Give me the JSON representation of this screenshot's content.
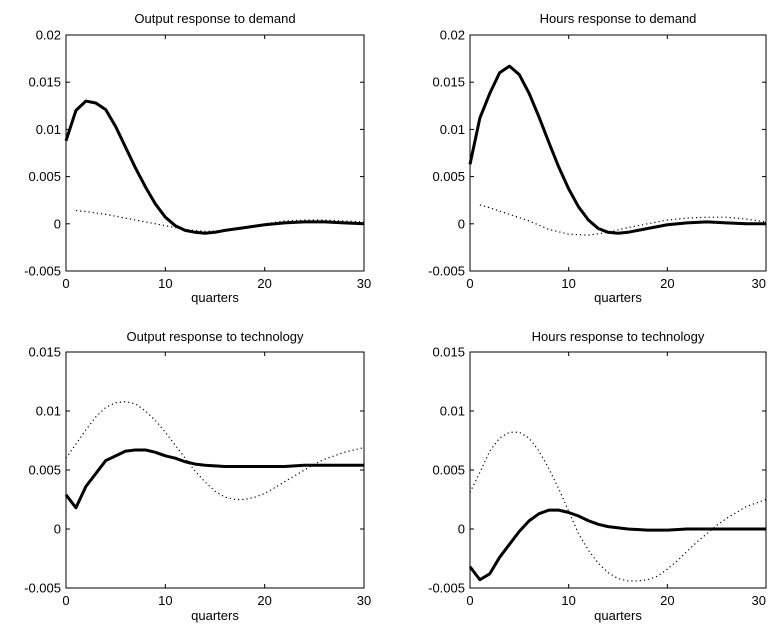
{
  "chart_data": [
    {
      "type": "line",
      "title": "Output response to demand",
      "xlabel": "quarters",
      "ylabel": "",
      "xlim": [
        0,
        30
      ],
      "ylim": [
        -0.005,
        0.02
      ],
      "xticks": [
        0,
        10,
        20,
        30
      ],
      "yticks": [
        -0.005,
        0,
        0.005,
        0.01,
        0.015,
        0.02
      ],
      "xtick_labels": [
        "0",
        "10",
        "20",
        "30"
      ],
      "ytick_labels": [
        "-0.005",
        "0",
        "0.005",
        "0.01",
        "0.015",
        "0.02"
      ],
      "grid": false,
      "series": [
        {
          "style": "solid",
          "x": [
            0,
            1,
            2,
            3,
            4,
            5,
            6,
            7,
            8,
            9,
            10,
            11,
            12,
            13,
            14,
            15,
            16,
            18,
            20,
            22,
            24,
            26,
            28,
            30
          ],
          "y": [
            0.0088,
            0.012,
            0.013,
            0.0128,
            0.0121,
            0.0103,
            0.0081,
            0.0059,
            0.0039,
            0.0021,
            0.0007,
            -0.0002,
            -0.0007,
            -0.0009,
            -0.001,
            -0.0009,
            -0.0007,
            -0.0004,
            -0.0001,
            0.0001,
            0.0002,
            0.0002,
            0.0001,
            0.0
          ]
        },
        {
          "style": "dotted",
          "x": [
            1,
            2,
            4,
            6,
            8,
            10,
            12,
            14,
            16,
            18,
            20,
            22,
            24,
            26,
            28,
            30
          ],
          "y": [
            0.0014,
            0.0013,
            0.001,
            0.0006,
            0.0002,
            -0.0002,
            -0.0006,
            -0.0008,
            -0.0007,
            -0.0004,
            0.0,
            0.0003,
            0.0004,
            0.0004,
            0.0003,
            0.0002
          ]
        }
      ]
    },
    {
      "type": "line",
      "title": "Hours response to demand",
      "xlabel": "quarters",
      "ylabel": "",
      "xlim": [
        0,
        30
      ],
      "ylim": [
        -0.005,
        0.02
      ],
      "xticks": [
        0,
        10,
        20,
        30
      ],
      "yticks": [
        -0.005,
        0,
        0.005,
        0.01,
        0.015,
        0.02
      ],
      "xtick_labels": [
        "0",
        "10",
        "20",
        "30"
      ],
      "ytick_labels": [
        "-0.005",
        "0",
        "0.005",
        "0.01",
        "0.015",
        "0.02"
      ],
      "grid": false,
      "series": [
        {
          "style": "solid",
          "x": [
            0,
            1,
            2,
            3,
            4,
            5,
            6,
            7,
            8,
            9,
            10,
            11,
            12,
            13,
            14,
            15,
            16,
            18,
            20,
            22,
            24,
            26,
            28,
            30
          ],
          "y": [
            0.0063,
            0.0112,
            0.0138,
            0.016,
            0.0167,
            0.0158,
            0.0138,
            0.0113,
            0.0086,
            0.006,
            0.0037,
            0.0018,
            0.0004,
            -0.0005,
            -0.0009,
            -0.001,
            -0.0009,
            -0.0005,
            -0.0001,
            0.0001,
            0.0002,
            0.0001,
            0.0,
            0.0
          ]
        },
        {
          "style": "dotted",
          "x": [
            1,
            2,
            4,
            6,
            8,
            10,
            12,
            14,
            16,
            18,
            20,
            22,
            24,
            26,
            28,
            30
          ],
          "y": [
            0.002,
            0.0017,
            0.001,
            0.0003,
            -0.0006,
            -0.0011,
            -0.0012,
            -0.0009,
            -0.0004,
            0.0,
            0.0004,
            0.0006,
            0.0007,
            0.0007,
            0.0005,
            0.0002
          ]
        }
      ]
    },
    {
      "type": "line",
      "title": "Output response to technology",
      "xlabel": "quarters",
      "ylabel": "",
      "xlim": [
        0,
        30
      ],
      "ylim": [
        -0.005,
        0.015
      ],
      "xticks": [
        0,
        10,
        20,
        30
      ],
      "yticks": [
        -0.005,
        0,
        0.005,
        0.01,
        0.015
      ],
      "xtick_labels": [
        "0",
        "10",
        "20",
        "30"
      ],
      "ytick_labels": [
        "-0.005",
        "0",
        "0.005",
        "0.01",
        "0.015"
      ],
      "grid": false,
      "series": [
        {
          "style": "solid",
          "x": [
            0,
            1,
            2,
            3,
            4,
            5,
            6,
            7,
            8,
            9,
            10,
            11,
            12,
            13,
            14,
            16,
            18,
            20,
            22,
            24,
            26,
            28,
            30
          ],
          "y": [
            0.0029,
            0.0018,
            0.0036,
            0.0047,
            0.0058,
            0.0062,
            0.0066,
            0.0067,
            0.0067,
            0.0065,
            0.0062,
            0.006,
            0.0057,
            0.0055,
            0.0054,
            0.0053,
            0.0053,
            0.0053,
            0.0053,
            0.0054,
            0.0054,
            0.0054,
            0.0054
          ]
        },
        {
          "style": "dotted",
          "x": [
            0,
            1,
            2,
            3,
            4,
            5,
            6,
            7,
            8,
            9,
            10,
            11,
            12,
            13,
            14,
            15,
            16,
            17,
            18,
            19,
            20,
            21,
            22,
            23,
            24,
            25,
            26,
            27,
            28,
            29,
            30
          ],
          "y": [
            0.006,
            0.0072,
            0.0084,
            0.0095,
            0.0103,
            0.0107,
            0.0108,
            0.0106,
            0.01,
            0.0092,
            0.0082,
            0.0071,
            0.006,
            0.0049,
            0.004,
            0.0032,
            0.0027,
            0.0025,
            0.0025,
            0.0027,
            0.003,
            0.0035,
            0.004,
            0.0045,
            0.005,
            0.0055,
            0.0059,
            0.0062,
            0.0065,
            0.0067,
            0.0069
          ]
        }
      ]
    },
    {
      "type": "line",
      "title": "Hours response to technology",
      "xlabel": "quarters",
      "ylabel": "",
      "xlim": [
        0,
        30
      ],
      "ylim": [
        -0.005,
        0.015
      ],
      "xticks": [
        0,
        10,
        20,
        30
      ],
      "yticks": [
        -0.005,
        0,
        0.005,
        0.01,
        0.015
      ],
      "xtick_labels": [
        "0",
        "10",
        "20",
        "30"
      ],
      "ytick_labels": [
        "-0.005",
        "0",
        "0.005",
        "0.01",
        "0.015"
      ],
      "grid": false,
      "series": [
        {
          "style": "solid",
          "x": [
            0,
            1,
            2,
            3,
            4,
            5,
            6,
            7,
            8,
            9,
            10,
            11,
            12,
            13,
            14,
            16,
            18,
            20,
            22,
            24,
            26,
            28,
            30
          ],
          "y": [
            -0.0032,
            -0.0043,
            -0.0038,
            -0.0024,
            -0.0013,
            -0.0002,
            0.0007,
            0.0013,
            0.0016,
            0.0016,
            0.0014,
            0.0011,
            0.0007,
            0.0004,
            0.0002,
            0.0,
            -0.0001,
            -0.0001,
            0.0,
            0.0,
            0.0,
            0.0,
            0.0
          ]
        },
        {
          "style": "dotted",
          "x": [
            0,
            1,
            2,
            3,
            4,
            5,
            6,
            7,
            8,
            9,
            10,
            11,
            12,
            13,
            14,
            15,
            16,
            17,
            18,
            19,
            20,
            21,
            22,
            23,
            24,
            25,
            26,
            27,
            28,
            29,
            30
          ],
          "y": [
            0.0031,
            0.0048,
            0.0066,
            0.0077,
            0.0082,
            0.0082,
            0.0077,
            0.0066,
            0.0051,
            0.0034,
            0.0015,
            -0.0004,
            -0.0018,
            -0.0029,
            -0.0037,
            -0.0042,
            -0.0044,
            -0.0044,
            -0.0043,
            -0.004,
            -0.0034,
            -0.0027,
            -0.0019,
            -0.0011,
            -0.0004,
            0.0003,
            0.0009,
            0.0014,
            0.0019,
            0.0022,
            0.0025
          ]
        }
      ]
    }
  ]
}
